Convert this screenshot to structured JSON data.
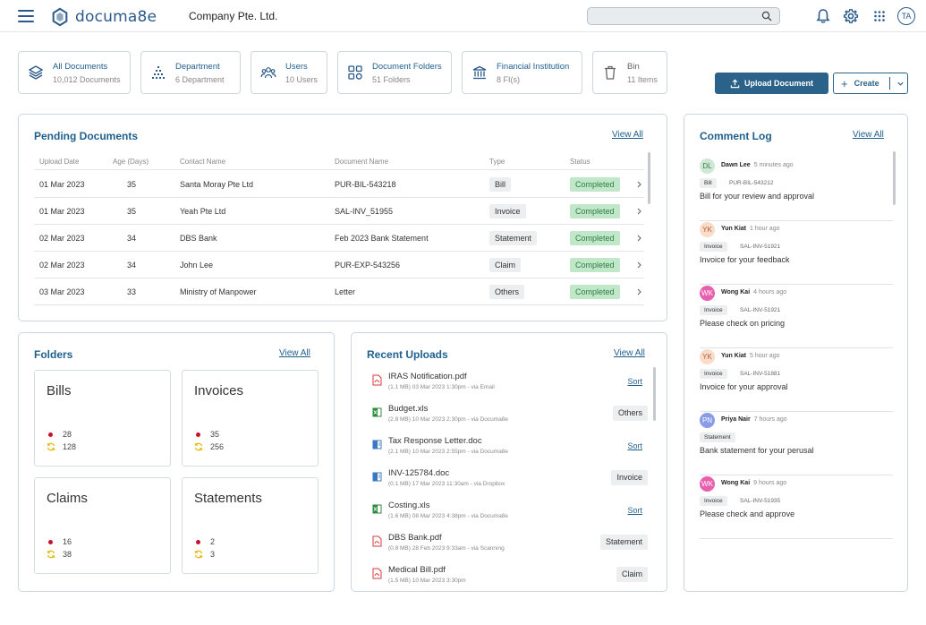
{
  "header": {
    "logo_text": "documa8e",
    "company": "Company Pte. Ltd.",
    "search_placeholder": "",
    "avatar_initials": "TA"
  },
  "stats": [
    {
      "title": "All Documents",
      "sub": "10,012 Documents",
      "icon": "documents-stack-icon"
    },
    {
      "title": "Department",
      "sub": "6 Department",
      "icon": "department-icon"
    },
    {
      "title": "Users",
      "sub": "10 Users",
      "icon": "users-icon"
    },
    {
      "title": "Document Folders",
      "sub": "51 Folders",
      "icon": "folders-grid-icon"
    },
    {
      "title": "Financial Institution",
      "sub": "8 FI(s)",
      "icon": "bank-icon"
    },
    {
      "title": "Bin",
      "sub": "11 Items",
      "icon": "trash-icon"
    }
  ],
  "actions": {
    "upload_label": "Upload Document",
    "create_label": "Create"
  },
  "pending": {
    "title": "Pending Documents",
    "view_all": "View All",
    "columns": [
      "Upload Date",
      "Age (Days)",
      "Contact Name",
      "Document Name",
      "Type",
      "Status"
    ],
    "rows": [
      {
        "date": "01 Mar 2023",
        "age": "35",
        "contact": "Santa Moray Pte Ltd",
        "doc": "PUR-BIL-543218",
        "type": "Bill",
        "status": "Completed"
      },
      {
        "date": "01 Mar 2023",
        "age": "35",
        "contact": "Yeah Pte Ltd",
        "doc": "SAL-INV_51955",
        "type": "Invoice",
        "status": "Completed"
      },
      {
        "date": "02 Mar 2023",
        "age": "34",
        "contact": "DBS Bank",
        "doc": "Feb 2023 Bank Statement",
        "type": "Statement",
        "status": "Completed"
      },
      {
        "date": "02 Mar 2023",
        "age": "34",
        "contact": "John Lee",
        "doc": "PUR-EXP-543256",
        "type": "Claim",
        "status": "Completed"
      },
      {
        "date": "03 Mar 2023",
        "age": "33",
        "contact": "Ministry of Manpower",
        "doc": "Letter",
        "type": "Others",
        "status": "Completed"
      }
    ]
  },
  "folders": {
    "title": "Folders",
    "view_all": "View All",
    "items": [
      {
        "name": "Bills",
        "pending": "28",
        "processing": "128"
      },
      {
        "name": "Invoices",
        "pending": "35",
        "processing": "256"
      },
      {
        "name": "Claims",
        "pending": "16",
        "processing": "38"
      },
      {
        "name": "Statements",
        "pending": "2",
        "processing": "3"
      }
    ]
  },
  "uploads": {
    "title": "Recent Uploads",
    "view_all": "View All",
    "items": [
      {
        "name": "IRAS Notification.pdf",
        "meta": "(1.1 MB) 03 Mar 2023 1:30pm - via Email",
        "kind": "pdf",
        "action": "Sort",
        "action_type": "link"
      },
      {
        "name": "Budget.xls",
        "meta": "(2.8 MB) 10 Mar 2023 2:30pm - via Documa8e",
        "kind": "xls",
        "action": "Others",
        "action_type": "badge"
      },
      {
        "name": "Tax Response Letter.doc",
        "meta": "(2.1 MB) 10 Mar 2023 2:55pm - via Documa8e",
        "kind": "doc",
        "action": "Sort",
        "action_type": "link"
      },
      {
        "name": "INV-125784.doc",
        "meta": "(0.1 MB) 17 Mar 2023 11:30am - via Dropbox",
        "kind": "doc",
        "action": "Invoice",
        "action_type": "badge"
      },
      {
        "name": "Costing.xls",
        "meta": "(1.6 MB) 08 Mar 2023 4:38pm - via Documa8e",
        "kind": "xls",
        "action": "Sort",
        "action_type": "link"
      },
      {
        "name": "DBS Bank.pdf",
        "meta": "(0.8 MB) 28 Feb 2023 9:33am - via Scanning",
        "kind": "pdf",
        "action": "Statement",
        "action_type": "badge"
      },
      {
        "name": "Medical Bill.pdf",
        "meta": "(1.5 MB) 10 Mar 2023 3:30pm",
        "kind": "pdf",
        "action": "Claim",
        "action_type": "badge"
      }
    ]
  },
  "comments": {
    "title": "Comment Log",
    "view_all": "View All",
    "items": [
      {
        "initials": "DL",
        "name": "Dawn Lee",
        "time": "5 minutes ago",
        "tag": "Bill",
        "ref": "PUR-BIL-543212",
        "text": "Bill for your review and approval",
        "bg": "#cfe8d6",
        "fg": "#3a7a4c"
      },
      {
        "initials": "YK",
        "name": "Yun Kiat",
        "time": "1 hour ago",
        "tag": "Invoice",
        "ref": "SAL-INV-51921",
        "text": "Invoice for your feedback",
        "bg": "#fbdcc8",
        "fg": "#b0603a"
      },
      {
        "initials": "WK",
        "name": "Wong Kai",
        "time": "4 hours ago",
        "tag": "Invoice",
        "ref": "SAL-INV-51921",
        "text": "Please check on pricing",
        "bg": "#e85fae",
        "fg": "#ffffff"
      },
      {
        "initials": "YK",
        "name": "Yun Kiat",
        "time": "5 hour ago",
        "tag": "Invoice",
        "ref": "SAL-INV-51881",
        "text": "Invoice for your approval",
        "bg": "#fbdcc8",
        "fg": "#b0603a"
      },
      {
        "initials": "PN",
        "name": "Priya Nair",
        "time": "7 hours ago",
        "tag": "Statement",
        "ref": "",
        "text": "Bank statement for your perusal",
        "bg": "#8a9be8",
        "fg": "#ffffff"
      },
      {
        "initials": "WK",
        "name": "Wong Kai",
        "time": "9 hours ago",
        "tag": "Invoice",
        "ref": "SAL-INV-51935",
        "text": "Please check and approve",
        "bg": "#e85fae",
        "fg": "#ffffff"
      }
    ]
  },
  "colors": {
    "primary": "#2b6289",
    "accent_text": "#1f5f8e",
    "status_green": "#bfe7c8",
    "pending_dot": "#c8102e",
    "sync_icon": "#e6b800",
    "pdf_icon": "#d9383a",
    "xls_icon": "#2e8b3e",
    "doc_icon": "#3a78c2"
  }
}
